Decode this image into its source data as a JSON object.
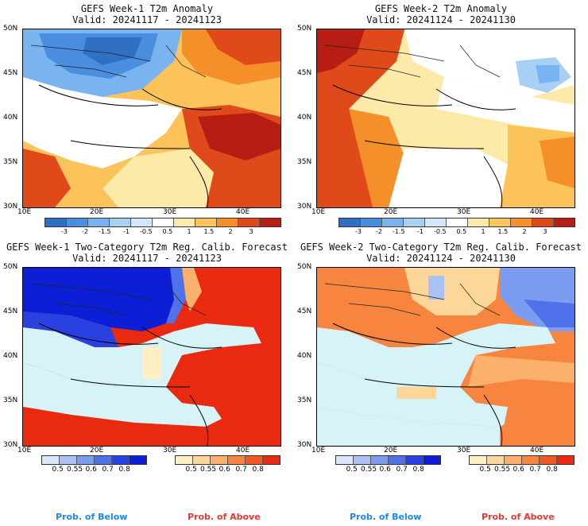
{
  "panels": [
    {
      "title": "GEFS Week-1 T2m Anomaly",
      "valid": "Valid: 20241117 - 20241123"
    },
    {
      "title": "GEFS Week-2 T2m Anomaly",
      "valid": "Valid: 20241124 - 20241130"
    },
    {
      "title": "GEFS Week-1 Two-Category T2m Reg. Calib. Forecast",
      "valid": "Valid: 20241117 - 20241123"
    },
    {
      "title": "GEFS Week-2 Two-Category T2m Reg. Calib. Forecast",
      "valid": "Valid: 20241124 - 20241130"
    }
  ],
  "axes": {
    "lat_labels": [
      "50N",
      "45N",
      "40N",
      "35N",
      "30N"
    ],
    "lon_labels": [
      "10E",
      "20E",
      "30E",
      "40E"
    ]
  },
  "anomaly_colorbar": {
    "labels": [
      "-3",
      "-2",
      "-1.5",
      "-1",
      "-0.5",
      "0.5",
      "1",
      "1.5",
      "2",
      "3"
    ],
    "colors": [
      "#2f6fc4",
      "#4a8ee0",
      "#7ab4f0",
      "#a8d0f5",
      "#d2e8fa",
      "#ffffff",
      "#fde9a8",
      "#fbc35a",
      "#f58f2a",
      "#e04a1a",
      "#b81d13"
    ]
  },
  "prob_below_colorbar": {
    "labels": [
      "0.5",
      "0.55",
      "0.6",
      "0.7",
      "0.8"
    ],
    "colors": [
      "#dbe6fb",
      "#a9c1f5",
      "#7c9cf0",
      "#4f72ea",
      "#2941e0",
      "#0c1fd6"
    ]
  },
  "prob_above_colorbar": {
    "labels": [
      "0.5",
      "0.55",
      "0.6",
      "0.7",
      "0.8"
    ],
    "colors": [
      "#fff0c4",
      "#fdd79a",
      "#fbb06c",
      "#f7853f",
      "#f25a24",
      "#ea2a10"
    ]
  },
  "legend": {
    "below": "Prob. of Below",
    "above": "Prob. of Above",
    "below_color": "#1e88e5",
    "above_color": "#e53935"
  },
  "colors": {
    "sea_neutral": "#d6f4f8",
    "land_neutral": "#ffffff",
    "border": "#000000"
  }
}
